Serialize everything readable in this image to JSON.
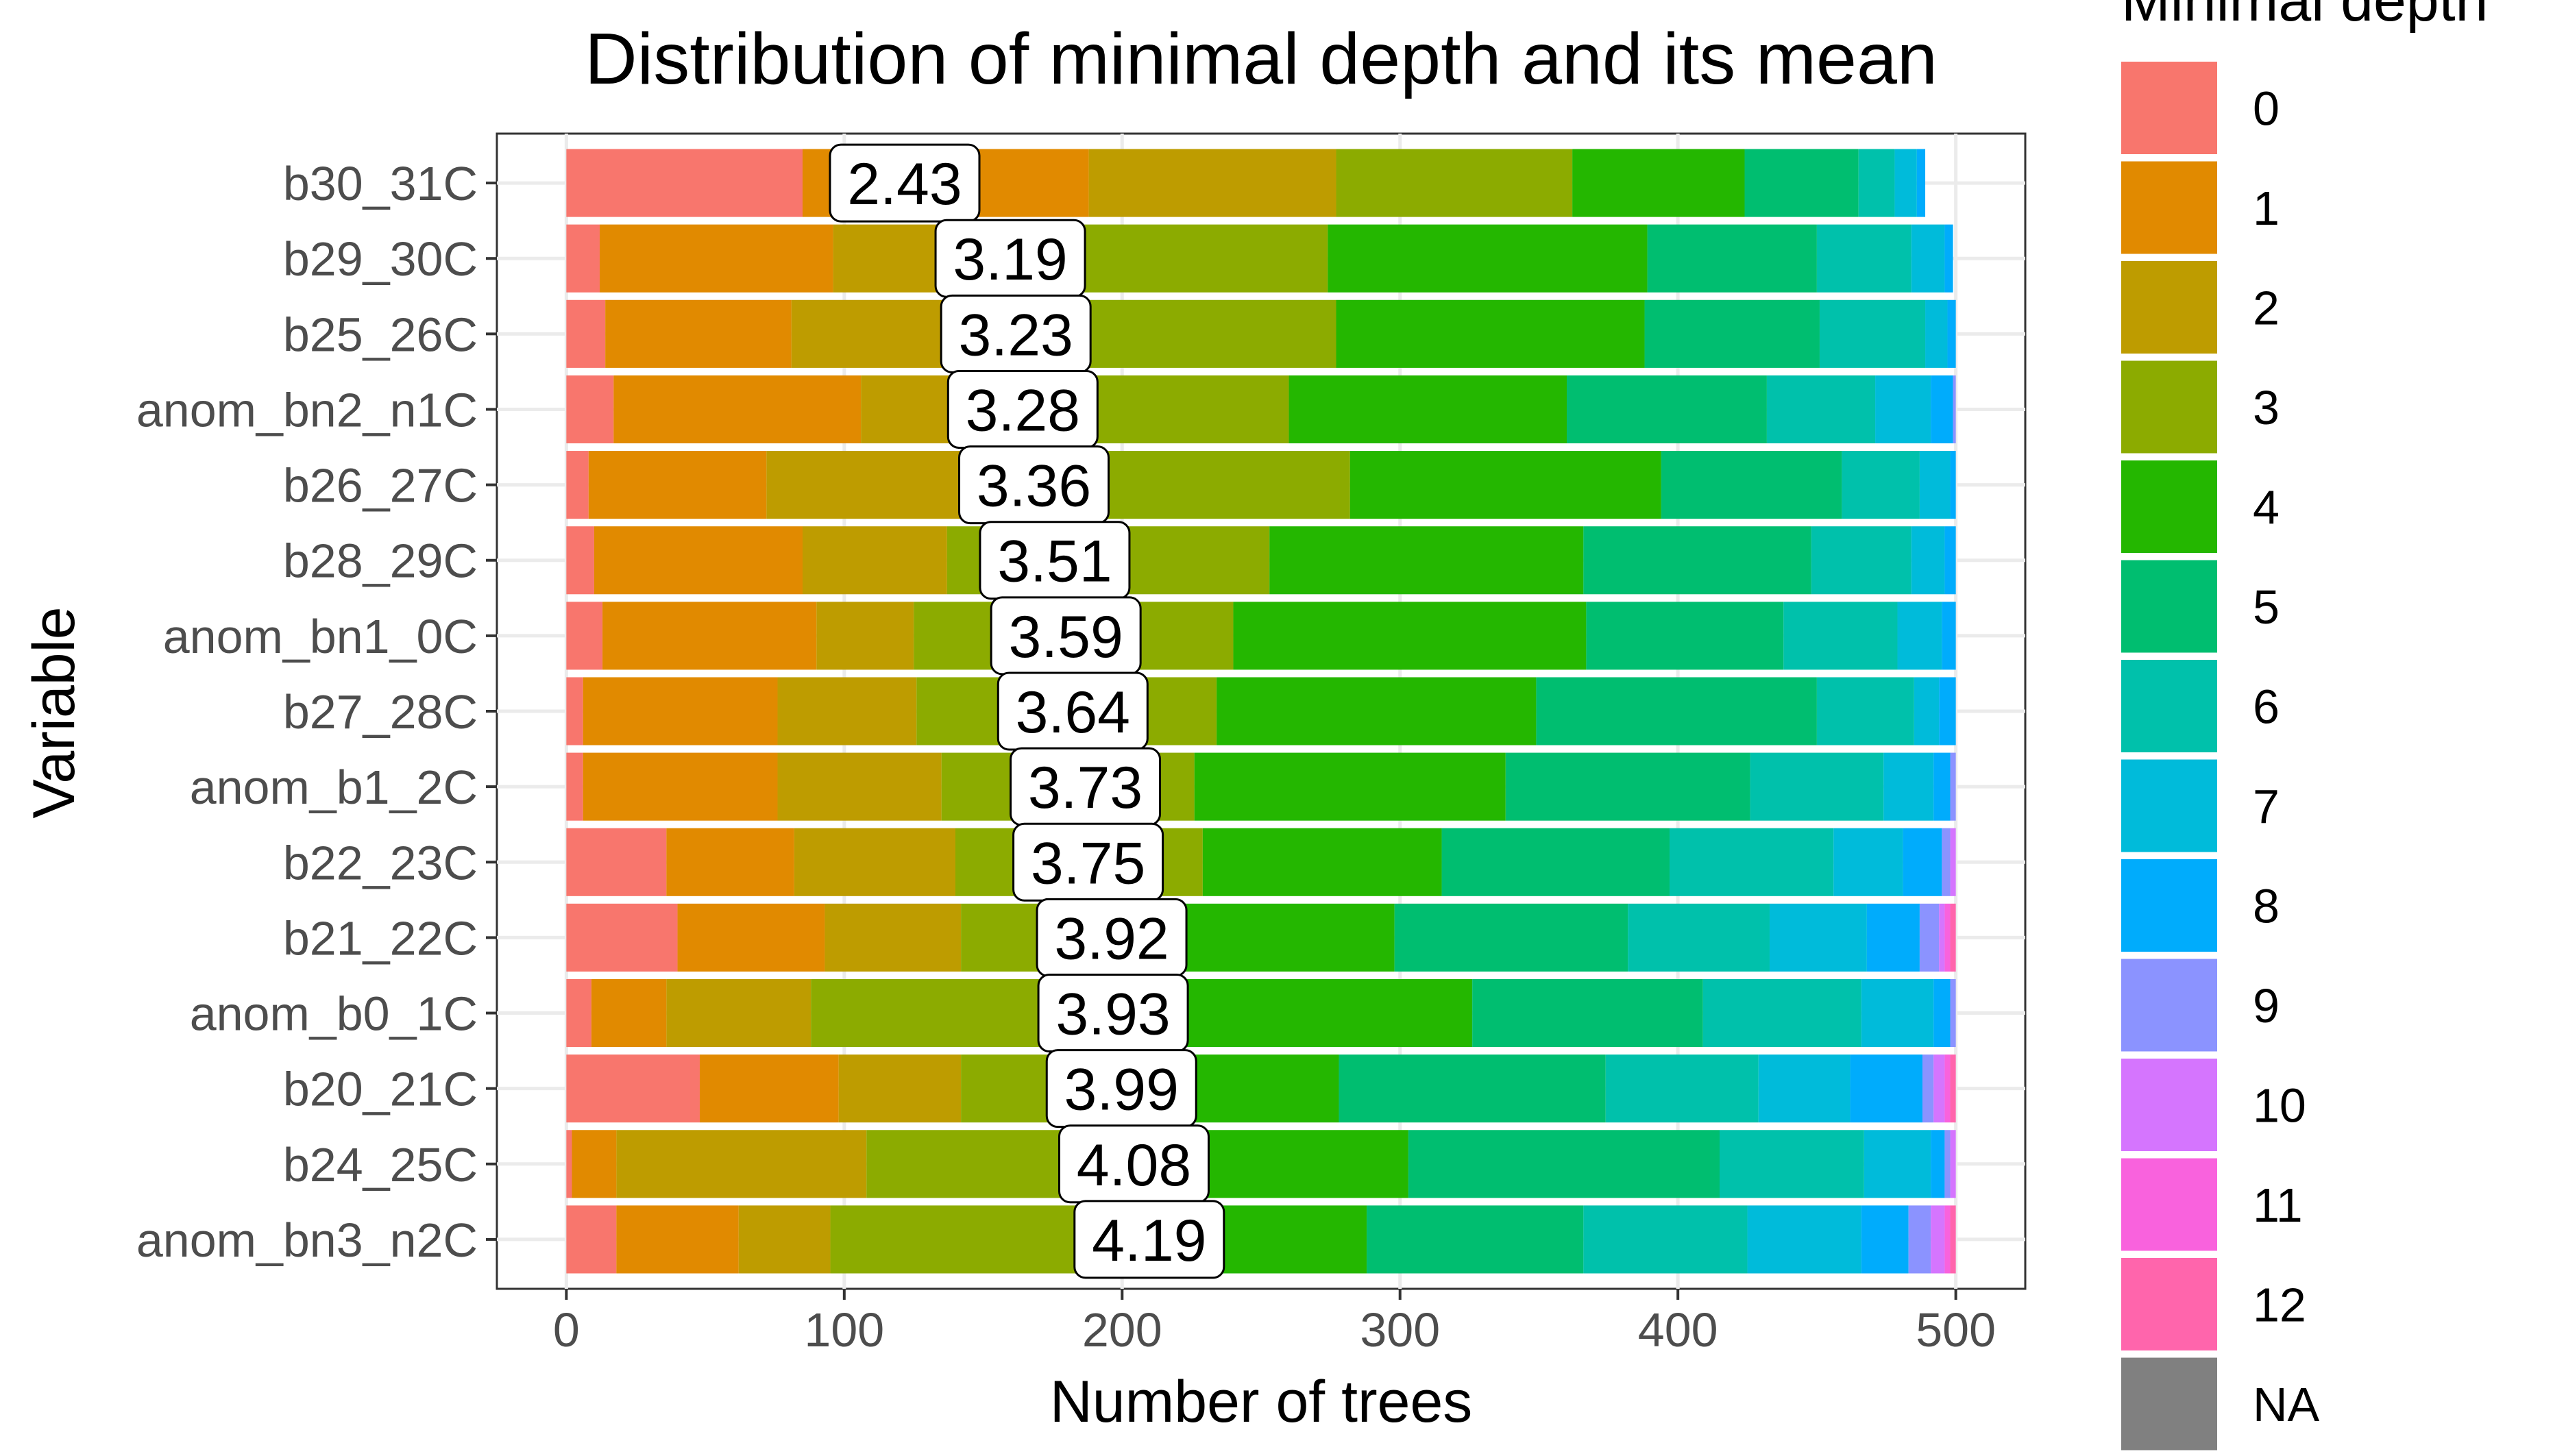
{
  "chart_data": {
    "type": "bar",
    "orientation": "horizontal",
    "stacked": true,
    "title": "Distribution of minimal depth and its mean",
    "xlabel": "Number of trees",
    "ylabel": "Variable",
    "xlim": [
      -25,
      525
    ],
    "x_ticks": [
      "0",
      "100",
      "200",
      "300",
      "400",
      "500"
    ],
    "x_tick_values": [
      0,
      100,
      200,
      300,
      400,
      500
    ],
    "grid": true,
    "legend": {
      "title": "Minimal depth",
      "position": "right",
      "entries": [
        "0",
        "1",
        "2",
        "3",
        "4",
        "5",
        "6",
        "7",
        "8",
        "9",
        "10",
        "11",
        "12",
        "NA"
      ],
      "colors": [
        "#F8766D",
        "#E18A00",
        "#BE9C00",
        "#8CAB00",
        "#24B700",
        "#00BE70",
        "#00C1AB",
        "#00BBDA",
        "#00ACFC",
        "#8B93FF",
        "#D575FE",
        "#F962DD",
        "#FF65AC",
        "#808080"
      ]
    },
    "categories": [
      "b30_31C",
      "b29_30C",
      "b25_26C",
      "anom_bn2_n1C",
      "b26_27C",
      "b28_29C",
      "anom_bn1_0C",
      "b27_28C",
      "anom_b1_2C",
      "b22_23C",
      "b21_22C",
      "anom_b0_1C",
      "b20_21C",
      "b24_25C",
      "anom_bn3_n2C"
    ],
    "mean_labels": [
      "2.43",
      "3.19",
      "3.23",
      "3.28",
      "3.36",
      "3.51",
      "3.59",
      "3.64",
      "3.73",
      "3.75",
      "3.92",
      "3.93",
      "3.99",
      "4.08",
      "4.19"
    ],
    "counts": [
      [
        85,
        103,
        89,
        85,
        62,
        41,
        13,
        8,
        3,
        0,
        0,
        0,
        0,
        0
      ],
      [
        12,
        84,
        79,
        99,
        115,
        61,
        34,
        12,
        3,
        0,
        0,
        0,
        0,
        0
      ],
      [
        14,
        67,
        90,
        106,
        111,
        63,
        38,
        8,
        3,
        0,
        0,
        0,
        0,
        0
      ],
      [
        17,
        89,
        84,
        70,
        100,
        72,
        39,
        20,
        8,
        1,
        0,
        0,
        0,
        0
      ],
      [
        8,
        64,
        77,
        133,
        112,
        65,
        28,
        11,
        2,
        0,
        0,
        0,
        0,
        0
      ],
      [
        10,
        75,
        52,
        116,
        113,
        82,
        36,
        12,
        4,
        0,
        0,
        0,
        0,
        0
      ],
      [
        13,
        77,
        35,
        115,
        127,
        71,
        41,
        16,
        5,
        0,
        0,
        0,
        0,
        0
      ],
      [
        6,
        70,
        50,
        108,
        115,
        101,
        35,
        9,
        6,
        0,
        0,
        0,
        0,
        0
      ],
      [
        6,
        70,
        59,
        91,
        112,
        88,
        48,
        18,
        6,
        2,
        0,
        0,
        0,
        0
      ],
      [
        36,
        46,
        58,
        89,
        86,
        82,
        59,
        25,
        14,
        3,
        2,
        0,
        0,
        0
      ],
      [
        40,
        53,
        49,
        76,
        80,
        84,
        51,
        35,
        19,
        7,
        2,
        2,
        2,
        0
      ],
      [
        9,
        27,
        52,
        109,
        129,
        83,
        57,
        26,
        6,
        2,
        0,
        0,
        0,
        0
      ],
      [
        48,
        50,
        44,
        68,
        68,
        96,
        55,
        33,
        26,
        4,
        4,
        2,
        2,
        0
      ],
      [
        2,
        16,
        90,
        85,
        110,
        112,
        52,
        24,
        5,
        2,
        2,
        0,
        0,
        0
      ],
      [
        18,
        44,
        33,
        95,
        98,
        78,
        59,
        41,
        17,
        8,
        5,
        2,
        2,
        0
      ]
    ]
  }
}
